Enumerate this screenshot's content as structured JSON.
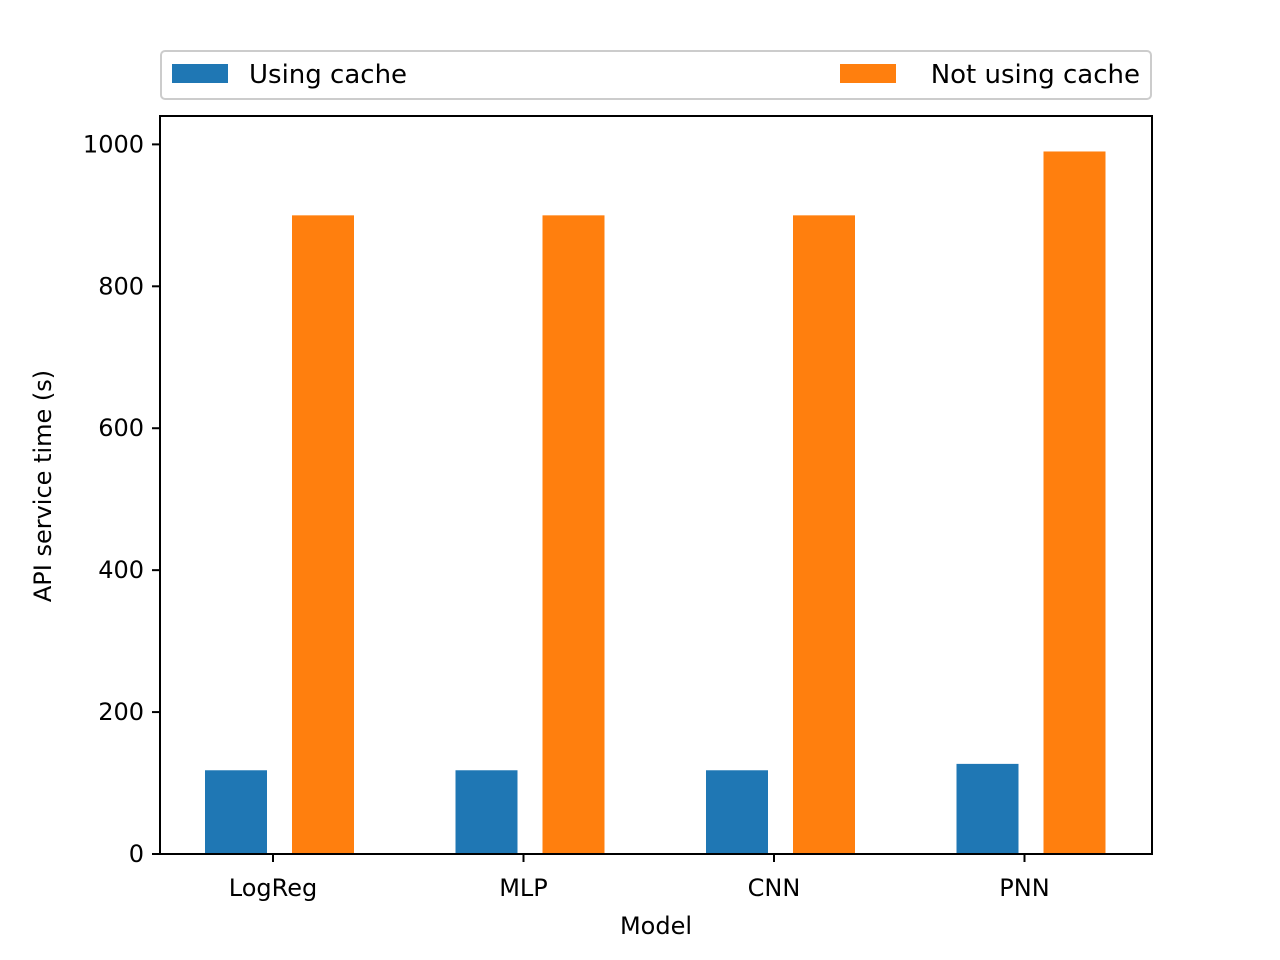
{
  "chart_data": {
    "type": "bar",
    "categories": [
      "LogReg",
      "MLP",
      "CNN",
      "PNN"
    ],
    "series": [
      {
        "name": "Using cache",
        "color": "#1f77b4",
        "values": [
          118,
          118,
          118,
          127
        ]
      },
      {
        "name": "Not using cache",
        "color": "#ff7f0e",
        "values": [
          900,
          900,
          900,
          990
        ]
      }
    ],
    "title": "",
    "xlabel": "Model",
    "ylabel": "API service time (s)",
    "ylim": [
      0,
      1040
    ],
    "yticks": [
      0,
      200,
      400,
      600,
      800,
      1000
    ],
    "grid": false,
    "legend_position": "top, above plot"
  }
}
